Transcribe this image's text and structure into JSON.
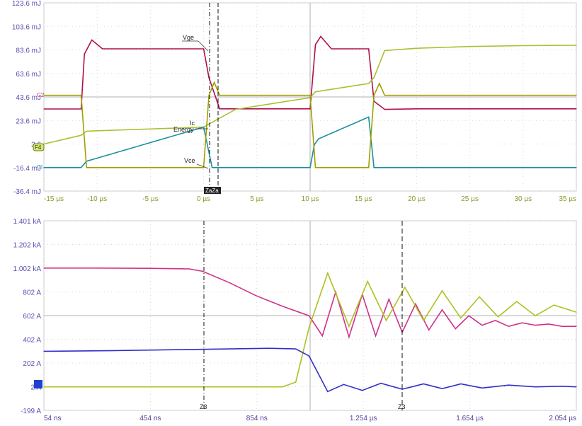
{
  "chart_data": [
    {
      "type": "line",
      "yticks": [
        "123.6 mJ",
        "103.6 mJ",
        "83.6 mJ",
        "63.6 mJ",
        "43.6 mJ",
        "23.6 mJ",
        "3.6",
        "-16.4 mJ",
        "-36.4 mJ"
      ],
      "xticks": [
        "-15 µs",
        "-10 µs",
        "-5 µs",
        "0 µs",
        "5 µs",
        "10 µs",
        "15 µs",
        "20 µs",
        "25 µs",
        "30 µs",
        "35 µs"
      ],
      "xlim": [
        -15,
        35
      ],
      "ylim": [
        -36.4,
        123.6
      ],
      "grid": true,
      "trace_labels": [
        "Vge",
        "Ic",
        "Energy",
        "Vce"
      ],
      "channel_markers": [
        "C2",
        "F4",
        "C1"
      ],
      "cursor_label": "ZaZa",
      "series": [
        {
          "name": "Vge",
          "color": "#b0104a",
          "x": [
            -15,
            -11.5,
            -11.2,
            -10.5,
            -9.5,
            0,
            0.5,
            1.5,
            10,
            10.5,
            11,
            12,
            15.5,
            16,
            17,
            20,
            35
          ],
          "y": [
            33.4,
            33.4,
            80,
            92,
            84.5,
            84.5,
            60,
            33.5,
            33.5,
            88,
            95,
            84.5,
            84.5,
            40,
            33,
            33.5,
            33.5
          ]
        },
        {
          "name": "Energy",
          "color": "#a8c030",
          "x": [
            -15,
            -11.5,
            -11,
            0,
            1,
            3,
            10,
            10.5,
            15.5,
            16,
            17,
            20,
            25,
            30,
            35
          ],
          "y": [
            3.6,
            11,
            14.5,
            18,
            23,
            33,
            43,
            48,
            55,
            60,
            83,
            85,
            86.5,
            87.2,
            87.5
          ]
        },
        {
          "name": "Ic",
          "color": "#1a8fa0",
          "x": [
            -15,
            -11.5,
            -11,
            0,
            0.8,
            10,
            10.4,
            10.8,
            15.5,
            16,
            17,
            35
          ],
          "y": [
            -16.4,
            -16.4,
            -11,
            18,
            -16.4,
            -16.4,
            3,
            8,
            26.5,
            -16.4,
            -16.4,
            -16.4
          ]
        },
        {
          "name": "Vce",
          "color": "#a0a000",
          "x": [
            -15,
            -11.5,
            -11,
            0,
            0.5,
            1,
            1.5,
            10,
            10.5,
            15.5,
            16,
            16.5,
            17,
            35
          ],
          "y": [
            45,
            45,
            -16.4,
            -16.4,
            45,
            56,
            45,
            45,
            -16.4,
            -16.4,
            45,
            55,
            45,
            45
          ]
        }
      ]
    },
    {
      "type": "line",
      "yticks": [
        "1.401 kA",
        "1.202 kA",
        "1.002 kA",
        "802 A",
        "602 A",
        "402 A",
        "202 A",
        "2 A",
        "-199 A"
      ],
      "xticks": [
        "54 ns",
        "454 ns",
        "854 ns",
        "1.254 µs",
        "1.654 µs",
        "2.054 µs"
      ],
      "xlim": [
        0.054,
        2.054
      ],
      "ylim": [
        -199,
        1401
      ],
      "grid": true,
      "cursor_labels": [
        "Z3",
        "Z3"
      ],
      "series": [
        {
          "name": "Ic",
          "color": "#d0308a",
          "x": [
            0.054,
            0.25,
            0.45,
            0.6,
            0.65,
            0.75,
            0.85,
            0.95,
            1.05,
            1.1,
            1.15,
            1.2,
            1.25,
            1.3,
            1.35,
            1.4,
            1.45,
            1.5,
            1.55,
            1.6,
            1.65,
            1.7,
            1.75,
            1.8,
            1.85,
            1.9,
            1.95,
            2.0,
            2.054
          ],
          "y": [
            1002,
            1002,
            1000,
            995,
            975,
            880,
            770,
            680,
            600,
            430,
            800,
            420,
            780,
            430,
            740,
            460,
            700,
            480,
            650,
            490,
            600,
            520,
            560,
            510,
            540,
            520,
            530,
            510,
            510
          ]
        },
        {
          "name": "Vce",
          "color": "#b0c020",
          "x": [
            0.054,
            0.4,
            0.8,
            0.95,
            1.0,
            1.05,
            1.12,
            1.2,
            1.27,
            1.34,
            1.41,
            1.48,
            1.55,
            1.62,
            1.69,
            1.76,
            1.83,
            1.9,
            1.97,
            2.054
          ],
          "y": [
            0,
            0,
            0,
            0,
            40,
            500,
            960,
            510,
            890,
            560,
            840,
            560,
            810,
            580,
            760,
            590,
            720,
            600,
            690,
            630
          ]
        },
        {
          "name": "Ic_module",
          "color": "#3030c8",
          "x": [
            0.054,
            0.3,
            0.6,
            0.9,
            1.0,
            1.05,
            1.12,
            1.18,
            1.25,
            1.32,
            1.4,
            1.48,
            1.55,
            1.62,
            1.7,
            1.8,
            1.9,
            2.0,
            2.054
          ],
          "y": [
            300,
            305,
            315,
            325,
            320,
            260,
            -40,
            20,
            -30,
            30,
            -20,
            25,
            -15,
            25,
            -10,
            15,
            0,
            5,
            0
          ]
        }
      ]
    }
  ]
}
